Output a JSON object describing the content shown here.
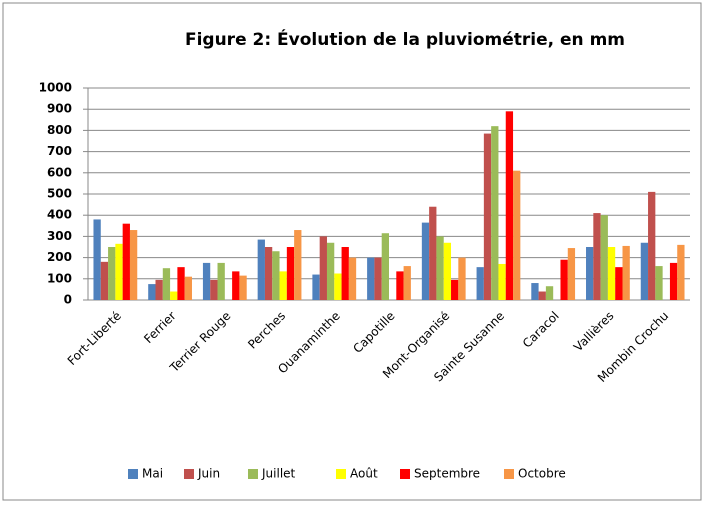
{
  "chart_data": {
    "type": "bar",
    "title": "Figure 2: Évolution de la pluviométrie, en  mm",
    "categories": [
      "Fort-Liberté",
      "Ferrier",
      "Terrier Rouge",
      "Perches",
      "Ouanaminthe",
      "Capotille",
      "Mont-Organisé",
      "Sainte Susanne",
      "Caracol",
      "Vallières",
      "Mombin Crochu"
    ],
    "series": [
      {
        "name": "Mai",
        "color": "#4f81bd",
        "values": [
          380,
          75,
          175,
          285,
          120,
          200,
          365,
          155,
          80,
          250,
          270
        ]
      },
      {
        "name": "Juin",
        "color": "#c0504d",
        "values": [
          180,
          95,
          95,
          250,
          300,
          200,
          440,
          785,
          40,
          410,
          510
        ]
      },
      {
        "name": "Juillet",
        "color": "#9bbb59",
        "values": [
          250,
          150,
          175,
          230,
          270,
          315,
          300,
          820,
          65,
          400,
          160
        ]
      },
      {
        "name": "Août",
        "color": "#ffff00",
        "values": [
          265,
          40,
          0,
          135,
          125,
          0,
          270,
          170,
          0,
          250,
          0
        ]
      },
      {
        "name": "Septembre",
        "color": "#ff0000",
        "values": [
          360,
          155,
          135,
          250,
          250,
          135,
          95,
          890,
          190,
          155,
          175
        ]
      },
      {
        "name": "Octobre",
        "color": "#f79646",
        "values": [
          330,
          110,
          115,
          330,
          200,
          160,
          200,
          610,
          245,
          255,
          260
        ]
      }
    ],
    "ylim": [
      0,
      1000
    ],
    "yticks": [
      0,
      100,
      200,
      300,
      400,
      500,
      600,
      700,
      800,
      900,
      1000
    ],
    "grid": true,
    "legend": "bottom"
  }
}
